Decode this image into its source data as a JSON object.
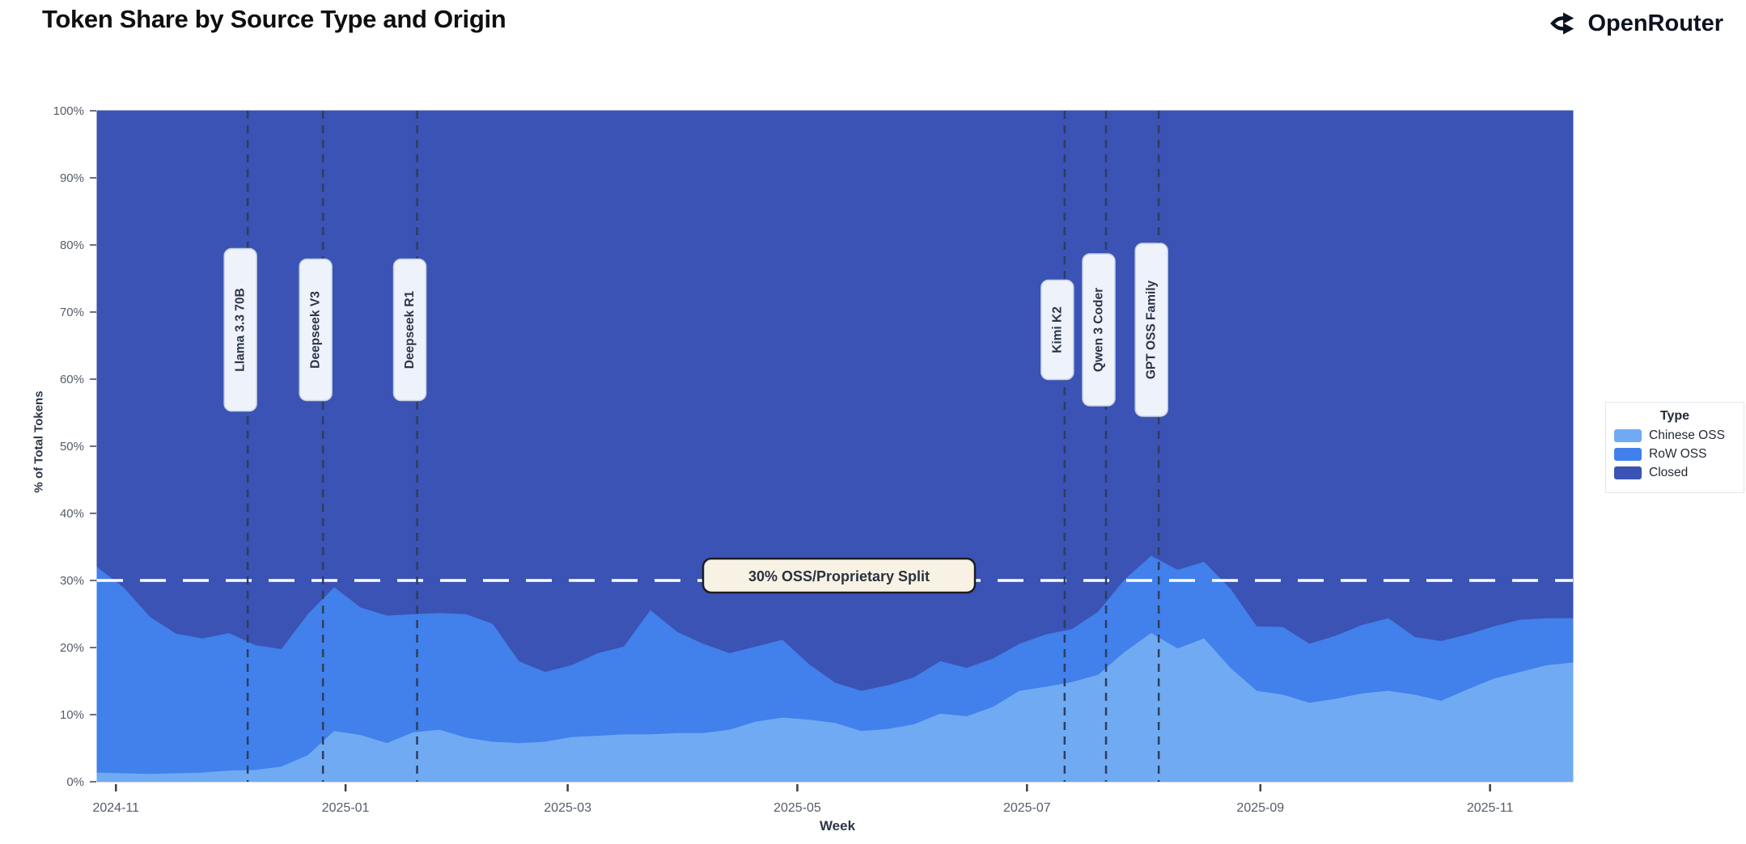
{
  "header": {
    "title": "Token Share by Source Type and Origin",
    "brand": "OpenRouter"
  },
  "chart_data": {
    "type": "area",
    "stacked": true,
    "normalized_percent": true,
    "title": "Token Share by Source Type and Origin",
    "xlabel": "Week",
    "ylabel": "% of Total Tokens",
    "ylim": [
      0,
      100
    ],
    "grid": false,
    "legend": {
      "title": "Type",
      "position": "right",
      "entries": [
        {
          "label": "Chinese OSS",
          "color": "#70AAF2"
        },
        {
          "label": "RoW OSS",
          "color": "#4280EB"
        },
        {
          "label": "Closed",
          "color": "#3A53B4"
        }
      ]
    },
    "x_ticks": [
      {
        "date": "2024-11-01",
        "label": "2024-11"
      },
      {
        "date": "2025-01-01",
        "label": "2025-01"
      },
      {
        "date": "2025-03-01",
        "label": "2025-03"
      },
      {
        "date": "2025-05-01",
        "label": "2025-05"
      },
      {
        "date": "2025-07-01",
        "label": "2025-07"
      },
      {
        "date": "2025-09-01",
        "label": "2025-09"
      },
      {
        "date": "2025-11-01",
        "label": "2025-11"
      }
    ],
    "y_ticks": [
      {
        "value": 0,
        "label": "0%"
      },
      {
        "value": 10,
        "label": "10%"
      },
      {
        "value": 20,
        "label": "20%"
      },
      {
        "value": 30,
        "label": "30%"
      },
      {
        "value": 40,
        "label": "40%"
      },
      {
        "value": 50,
        "label": "50%"
      },
      {
        "value": 60,
        "label": "60%"
      },
      {
        "value": 70,
        "label": "70%"
      },
      {
        "value": 80,
        "label": "80%"
      },
      {
        "value": 90,
        "label": "90%"
      },
      {
        "value": 100,
        "label": "100%"
      }
    ],
    "x": [
      "2024-10-27",
      "2024-11-03",
      "2024-11-10",
      "2024-11-17",
      "2024-11-24",
      "2024-12-01",
      "2024-12-08",
      "2024-12-15",
      "2024-12-22",
      "2024-12-29",
      "2025-01-05",
      "2025-01-12",
      "2025-01-19",
      "2025-01-26",
      "2025-02-02",
      "2025-02-09",
      "2025-02-16",
      "2025-02-23",
      "2025-03-02",
      "2025-03-09",
      "2025-03-16",
      "2025-03-23",
      "2025-03-30",
      "2025-04-06",
      "2025-04-13",
      "2025-04-20",
      "2025-04-27",
      "2025-05-04",
      "2025-05-11",
      "2025-05-18",
      "2025-05-25",
      "2025-06-01",
      "2025-06-08",
      "2025-06-15",
      "2025-06-22",
      "2025-06-29",
      "2025-07-06",
      "2025-07-13",
      "2025-07-20",
      "2025-07-27",
      "2025-08-03",
      "2025-08-10",
      "2025-08-17",
      "2025-08-24",
      "2025-08-31",
      "2025-09-07",
      "2025-09-14",
      "2025-09-21",
      "2025-09-28",
      "2025-10-05",
      "2025-10-12",
      "2025-10-19",
      "2025-10-26",
      "2025-11-02",
      "2025-11-09",
      "2025-11-16",
      "2025-11-23"
    ],
    "series": [
      {
        "name": "Chinese OSS",
        "color": "#70AAF2",
        "values": [
          1.3,
          1.2,
          1.1,
          1.2,
          1.3,
          1.6,
          1.7,
          2.2,
          3.9,
          7.5,
          6.9,
          5.7,
          7.3,
          7.7,
          6.5,
          5.9,
          5.7,
          5.9,
          6.6,
          6.8,
          7.0,
          7.0,
          7.2,
          7.2,
          7.7,
          8.9,
          9.5,
          9.2,
          8.7,
          7.5,
          7.8,
          8.5,
          10.1,
          9.7,
          11.1,
          13.5,
          14.1,
          14.8,
          15.9,
          19.3,
          22.1,
          19.8,
          21.3,
          16.9,
          13.5,
          12.9,
          11.7,
          12.3,
          13.1,
          13.5,
          12.9,
          12.0,
          13.7,
          15.3,
          16.3,
          17.3,
          17.7
        ]
      },
      {
        "name": "RoW OSS",
        "color": "#4280EB",
        "values": [
          30.6,
          27.7,
          23.4,
          20.8,
          20.0,
          20.5,
          18.6,
          17.5,
          21.0,
          21.4,
          19.0,
          19.0,
          17.6,
          17.4,
          18.4,
          17.6,
          12.2,
          10.4,
          10.7,
          12.3,
          13.1,
          18.5,
          15.1,
          13.3,
          11.4,
          11.2,
          11.6,
          8.3,
          6.0,
          6.0,
          6.5,
          7.0,
          7.8,
          7.2,
          7.2,
          7.0,
          7.8,
          7.9,
          9.4,
          10.8,
          11.5,
          11.7,
          11.4,
          11.8,
          9.6,
          10.1,
          8.8,
          9.4,
          10.2,
          10.8,
          8.6,
          8.9,
          8.2,
          7.8,
          7.8,
          7.0,
          6.6
        ]
      },
      {
        "name": "Closed",
        "color": "#3A53B4",
        "values": [
          68.1,
          71.1,
          75.5,
          78.0,
          78.7,
          77.9,
          79.7,
          80.3,
          75.1,
          71.1,
          74.1,
          75.3,
          75.1,
          74.9,
          75.1,
          76.5,
          82.1,
          83.7,
          82.7,
          80.9,
          79.9,
          74.5,
          77.7,
          79.5,
          80.9,
          79.9,
          78.9,
          82.5,
          85.3,
          86.5,
          85.7,
          84.5,
          82.1,
          83.1,
          81.7,
          79.5,
          78.1,
          77.3,
          74.7,
          69.9,
          66.4,
          68.5,
          67.3,
          71.3,
          76.9,
          77.0,
          79.5,
          78.3,
          76.7,
          75.7,
          78.5,
          79.1,
          78.1,
          76.9,
          75.9,
          75.7,
          75.7
        ]
      }
    ],
    "annotations": {
      "vlines": [
        {
          "date": "2024-12-06",
          "label": "Llama 3.3 70B"
        },
        {
          "date": "2024-12-26",
          "label": "Deepseek V3"
        },
        {
          "date": "2025-01-20",
          "label": "Deepseek R1"
        },
        {
          "date": "2025-07-11",
          "label": "Kimi K2"
        },
        {
          "date": "2025-07-22",
          "label": "Qwen 3 Coder"
        },
        {
          "date": "2025-08-05",
          "label": "GPT OSS Family"
        }
      ],
      "vline_color": "#2D3E5E",
      "hline": {
        "value": 30,
        "label": "30% OSS/Proprietary Split",
        "color": "#FFFFFF",
        "label_bg": "#F7F2E3",
        "label_border": "#1D1D1F"
      }
    },
    "colors": {
      "background": "#FFFFFF",
      "tick_text": "#565D68",
      "axis_text": "#2D3748"
    }
  }
}
